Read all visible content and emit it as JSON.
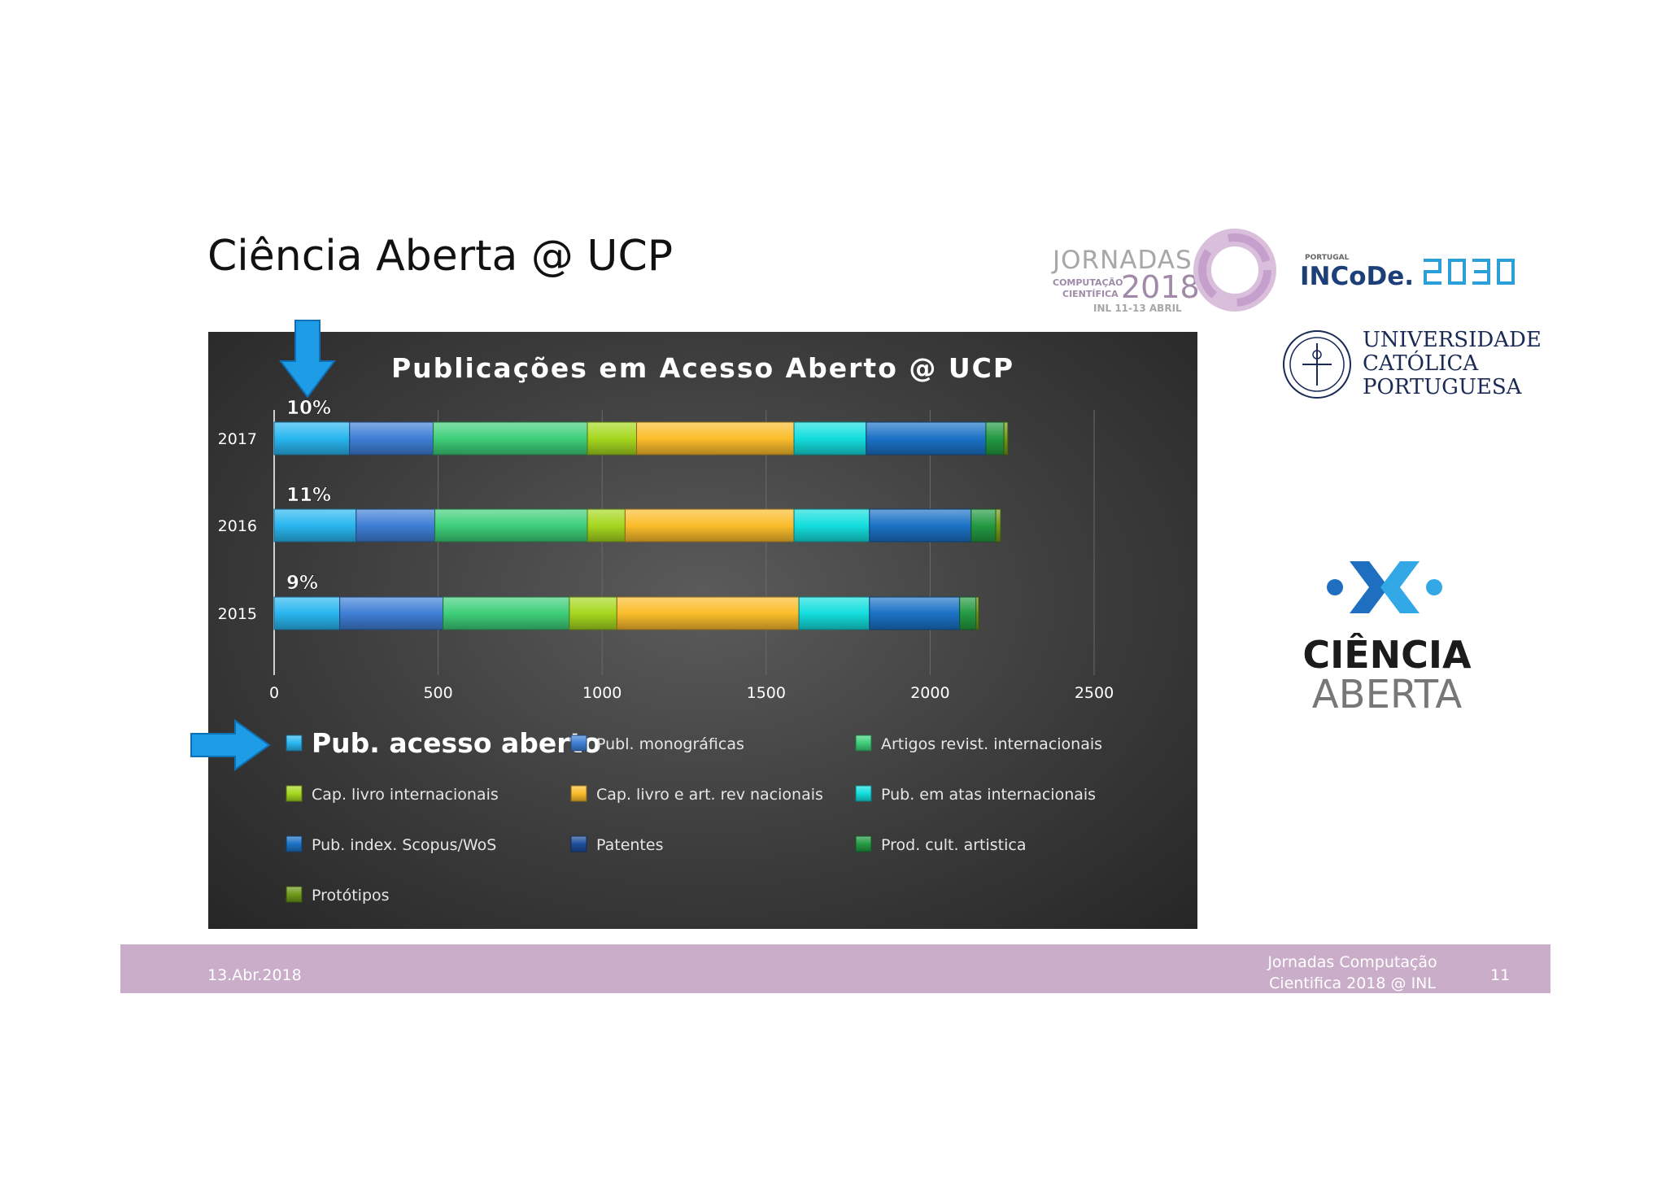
{
  "slide": {
    "title": "Ciência Aberta @ UCP",
    "footer_date": "13.Abr.2018",
    "footer_event_line1": "Jornadas Computação",
    "footer_event_line2": "Cientifica 2018 @ INL",
    "page_number": "11"
  },
  "logos": {
    "jornadas": {
      "title": "JORNADAS",
      "sub1": "COMPUTAÇÃO",
      "sub2": "CIENTÍFICA",
      "year": "2018",
      "date": "INL 11-13 ABRIL"
    },
    "incode": {
      "small": "PORTUGAL",
      "main": "INCoDe."
    },
    "ucp": {
      "line1": "UNIVERSIDADE",
      "line2": "CATÓLICA",
      "line3": "PORTUGUESA"
    },
    "ciencia_aberta": {
      "word1": "CIÊNCIA",
      "word2": "ABERTA"
    }
  },
  "colors": {
    "footer": "#c9adc9",
    "arrow": "#1e9de6",
    "panel": "#3c3c3c"
  },
  "chart_data": {
    "type": "bar",
    "orientation": "horizontal",
    "stacked": true,
    "title": "Publicações em Acesso Aberto @ UCP",
    "categories": [
      "2017",
      "2016",
      "2015"
    ],
    "xlim": [
      0,
      2500
    ],
    "x_ticks": [
      "0",
      "500",
      "1000",
      "1500",
      "2000",
      "2500"
    ],
    "grid": true,
    "legend_position": "bottom",
    "annotations": [
      "10%",
      "11%",
      "9%"
    ],
    "series": [
      {
        "name": "Pub. acesso aberto",
        "color": "#29b6f0",
        "values": [
          230,
          250,
          200
        ]
      },
      {
        "name": "Publ. monográficas",
        "color": "#3f7fd6",
        "values": [
          255,
          240,
          315
        ]
      },
      {
        "name": "Artigos revist. internacionais",
        "color": "#3ecf7a",
        "values": [
          470,
          465,
          385
        ]
      },
      {
        "name": "Cap. livro internacionais",
        "color": "#a6d81f",
        "values": [
          150,
          115,
          145
        ]
      },
      {
        "name": "Cap. livro e art. rev nacionais",
        "color": "#fbbd2b",
        "values": [
          480,
          515,
          555
        ]
      },
      {
        "name": "Pub. em atas internacionais",
        "color": "#14dede",
        "values": [
          220,
          230,
          215
        ]
      },
      {
        "name": "Pub. index. Scopus/WoS",
        "color": "#1b72c6",
        "values": [
          365,
          310,
          275
        ]
      },
      {
        "name": "Patentes",
        "color": "#1f4f9c",
        "values": [
          0,
          0,
          0
        ]
      },
      {
        "name": "Prod. cult. artistica",
        "color": "#239a43",
        "values": [
          55,
          75,
          50
        ]
      },
      {
        "name": "Protótipos",
        "color": "#6f9a1a",
        "values": [
          12,
          15,
          8
        ]
      }
    ]
  }
}
